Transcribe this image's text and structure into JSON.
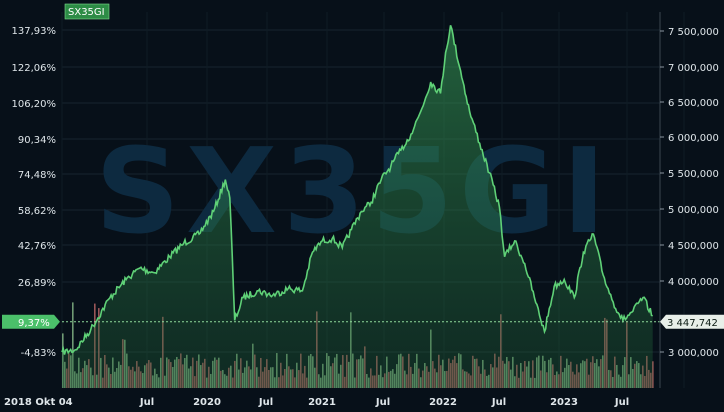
{
  "chart_data": {
    "type": "line",
    "symbol": "SX35GI",
    "watermark": "SX35GI",
    "y_left": {
      "unit": "percent change",
      "ticks": [
        "137,93%",
        "122,06%",
        "106,20%",
        "90,34%",
        "74,48%",
        "58,62%",
        "42,76%",
        "26,89%",
        "-4,83%"
      ],
      "range": [
        -10,
        150
      ]
    },
    "y_right": {
      "unit": "volume",
      "ticks": [
        "7 500,000",
        "7 000,000",
        "6 500,000",
        "6 000,000",
        "5 500,000",
        "5 000,000",
        "4 500,000",
        "4 000,000",
        "3 000,000"
      ]
    },
    "x_ticks": [
      "2018 Okt 04",
      "Jul",
      "2020",
      "Jul",
      "2021",
      "Jul",
      "2022",
      "Jul",
      "2023",
      "Jul"
    ],
    "current_pct_label": "9,37%",
    "current_value_label": "3 447,742",
    "current_pct": 9.37,
    "series": [
      {
        "type": "line",
        "x": [
          "2018-10-04",
          "2018-11-15",
          "2019-01-01",
          "2019-03-01",
          "2019-04-20",
          "2019-06-01",
          "2019-07-15",
          "2019-09-01",
          "2019-10-15",
          "2019-12-01",
          "2020-01-15",
          "2020-02-20",
          "2020-03-05",
          "2020-03-20",
          "2020-04-15",
          "2020-06-01",
          "2020-07-15",
          "2020-09-01",
          "2020-10-15",
          "2020-11-15",
          "2020-12-15",
          "2021-01-15",
          "2021-02-15",
          "2021-03-15",
          "2021-04-15",
          "2021-05-15",
          "2021-06-15",
          "2021-07-15",
          "2021-08-15",
          "2021-09-15",
          "2021-10-15",
          "2021-11-15",
          "2021-12-15",
          "2021-12-31",
          "2022-01-15",
          "2022-02-15",
          "2022-03-15",
          "2022-04-15",
          "2022-05-15",
          "2022-06-15",
          "2022-07-01",
          "2022-08-01",
          "2022-09-01",
          "2022-10-01",
          "2022-11-01",
          "2022-12-01",
          "2023-01-01",
          "2023-02-01",
          "2023-03-01",
          "2023-04-01",
          "2023-05-01",
          "2023-06-01",
          "2023-07-01",
          "2023-08-01",
          "2023-09-01",
          "2023-10-01"
        ],
        "y": [
          -4,
          -3,
          6,
          20,
          28,
          33,
          31,
          38,
          44,
          48,
          58,
          72,
          64,
          10,
          20,
          23,
          21,
          24,
          23,
          40,
          45,
          46,
          42,
          50,
          58,
          62,
          72,
          78,
          85,
          92,
          102,
          115,
          110,
          128,
          140,
          120,
          102,
          88,
          75,
          60,
          38,
          45,
          35,
          20,
          5,
          25,
          28,
          20,
          40,
          48,
          30,
          18,
          10,
          14,
          20,
          12
        ],
        "color": "#5fd177"
      },
      {
        "type": "bar",
        "name": "volume",
        "colors": {
          "up": "#93c891",
          "down": "#cc6e6e"
        }
      }
    ]
  }
}
